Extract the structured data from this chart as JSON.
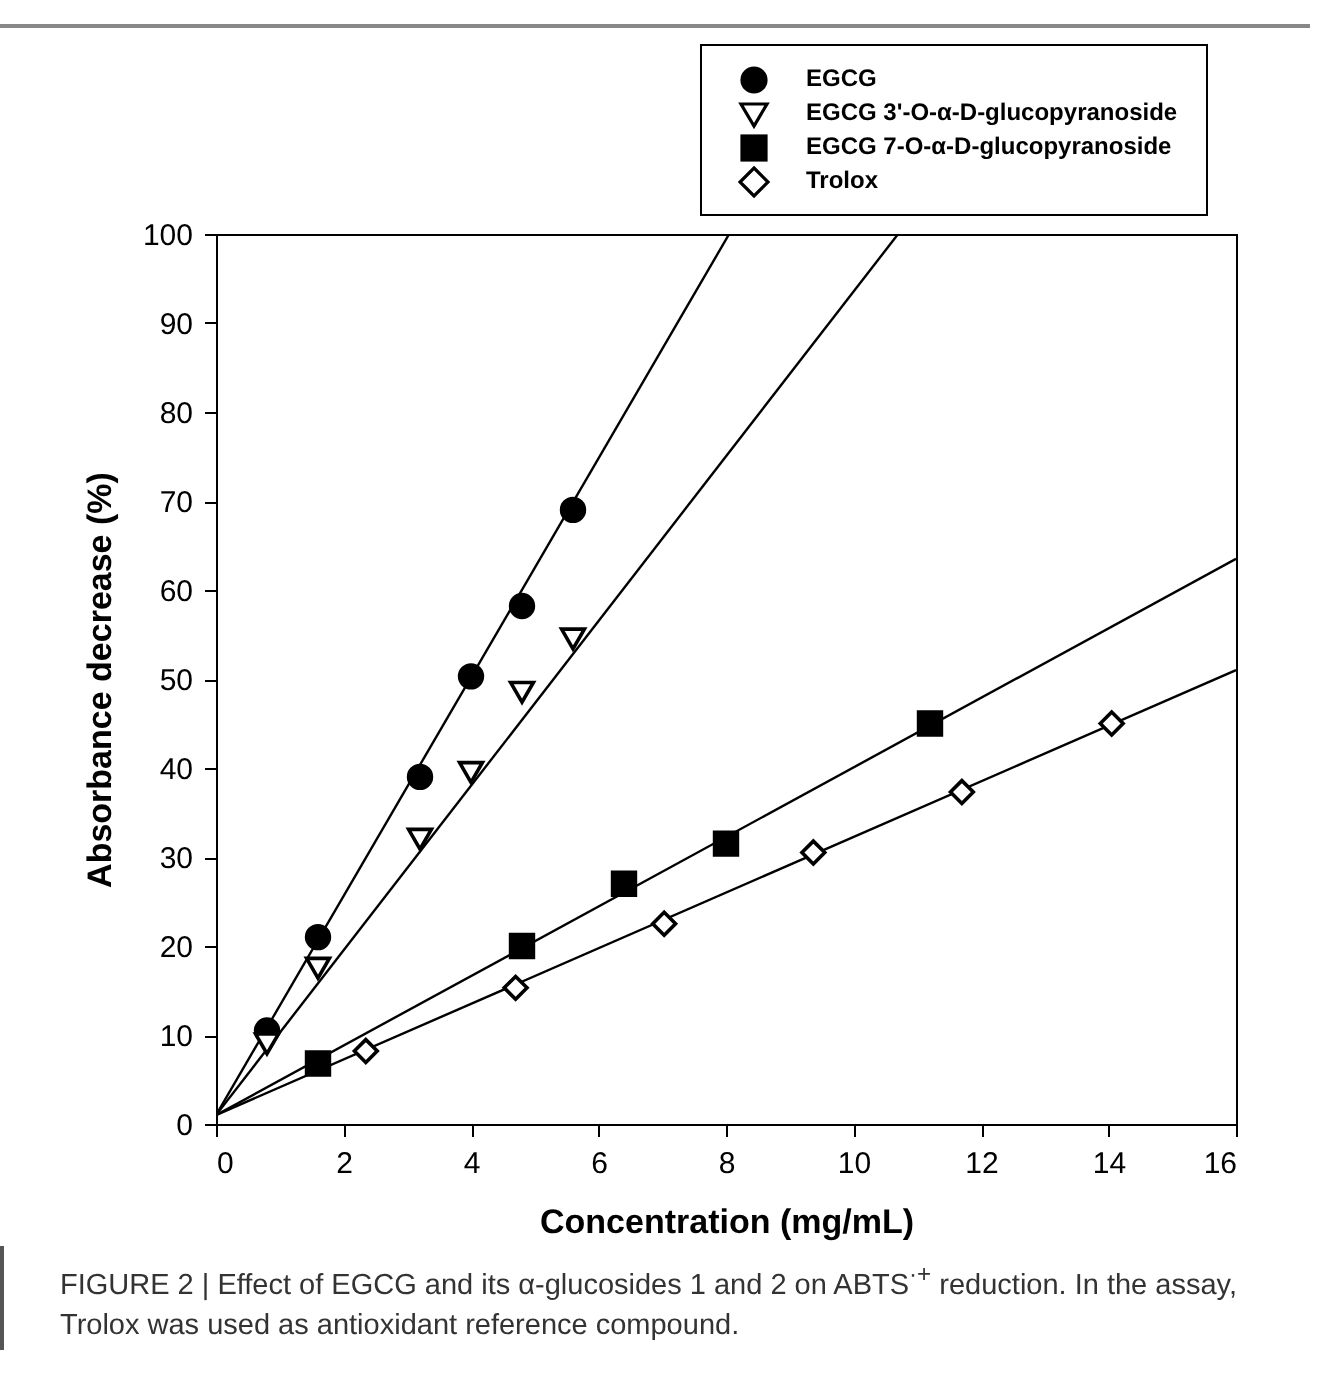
{
  "chart_data": {
    "type": "scatter",
    "xlabel": "Concentration (mg/mL)",
    "ylabel": "Absorbance decrease (%)",
    "xlim": [
      0,
      16
    ],
    "ylim": [
      0,
      100
    ],
    "xticks": [
      0,
      2,
      4,
      6,
      8,
      10,
      12,
      14,
      16
    ],
    "yticks": [
      0,
      10,
      20,
      30,
      40,
      50,
      60,
      70,
      80,
      90,
      100
    ],
    "legend": "top right",
    "grid": false,
    "annotations": [
      "FIGURE 2 | Effect of EGCG and its α-glucosides 1 and 2 on ABTS$^{·+}$ reduction. In the assay, Trolox was used as antioxidant reference compound."
    ],
    "series": [
      {
        "type": "line",
        "color": "#000000",
        "x": [
          0,
          8.05
        ],
        "values": [
          1,
          100
        ]
      },
      {
        "type": "line",
        "color": "#000000",
        "x": [
          0,
          10.7
        ],
        "values": [
          1,
          100
        ]
      },
      {
        "type": "line",
        "color": "#000000",
        "x": [
          0,
          16
        ],
        "values": [
          1,
          63.5
        ]
      },
      {
        "type": "line",
        "color": "#000000",
        "x": [
          0,
          16
        ],
        "values": [
          1,
          51
        ]
      },
      {
        "type": "scatter",
        "name": "EGCG",
        "marker": "circle",
        "color": "#000000",
        "x": [
          0.8,
          1.6,
          3.2,
          4,
          4.8,
          5.6
        ],
        "values": [
          10.5,
          21,
          39,
          50.3,
          58.2,
          69
        ]
      },
      {
        "type": "scatter",
        "name": "EGCG 3'-O-α-D-glucopyranoside",
        "marker": "triangle",
        "color": "#ffffff",
        "x": [
          0.8,
          1.6,
          3.2,
          4,
          4.8,
          5.6
        ],
        "values": [
          9,
          17.5,
          32,
          39.5,
          48.5,
          54.5
        ]
      },
      {
        "type": "scatter",
        "name": "EGCG 7-O-α-D-glucopyranoside",
        "marker": "square",
        "color": "#000000",
        "x": [
          1.6,
          4.8,
          6.4,
          8,
          11.2
        ],
        "values": [
          6.8,
          20,
          27,
          31.5,
          45
        ]
      },
      {
        "type": "scatter",
        "name": "Trolox",
        "marker": "diamond",
        "color": "#ffffff",
        "x": [
          2.35,
          4.7,
          7.03,
          9.37,
          11.7,
          14.05
        ],
        "values": [
          8.2,
          15.3,
          22.5,
          30.5,
          37.3,
          45
        ]
      }
    ]
  }
}
